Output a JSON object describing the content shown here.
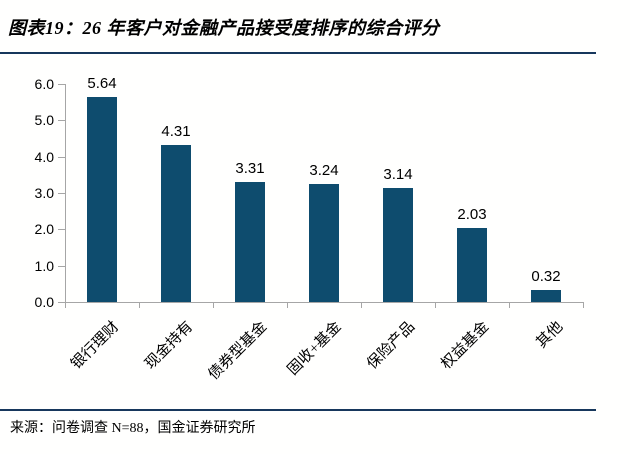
{
  "title": "图表19：26 年客户对金融产品接受度排序的综合评分",
  "source": "来源：问卷调查 N=88，国金证券研究所",
  "colors": {
    "bar": "#0E4C6E",
    "rule": "#17375C",
    "axis": "#A6A6A6",
    "text": "#000000",
    "background": "#FFFFFE"
  },
  "chart_data": {
    "type": "bar",
    "title": "图表19：26 年客户对金融产品接受度排序的综合评分",
    "categories": [
      "银行理财",
      "现金持有",
      "债券型基金",
      "固收+基金",
      "保险产品",
      "权益基金",
      "其他"
    ],
    "values": [
      5.64,
      4.31,
      3.31,
      3.24,
      3.14,
      2.03,
      0.32
    ],
    "data_labels": [
      "5.64",
      "4.31",
      "3.31",
      "3.24",
      "3.14",
      "2.03",
      "0.32"
    ],
    "xlabel": "",
    "ylabel": "",
    "ylim": [
      0,
      6
    ],
    "ytick_step": 1.0,
    "yticks": [
      "6.0",
      "5.0",
      "4.0",
      "3.0",
      "2.0",
      "1.0",
      "0.0"
    ],
    "grid": false,
    "legend": false,
    "category_label_rotation_deg": 45
  }
}
